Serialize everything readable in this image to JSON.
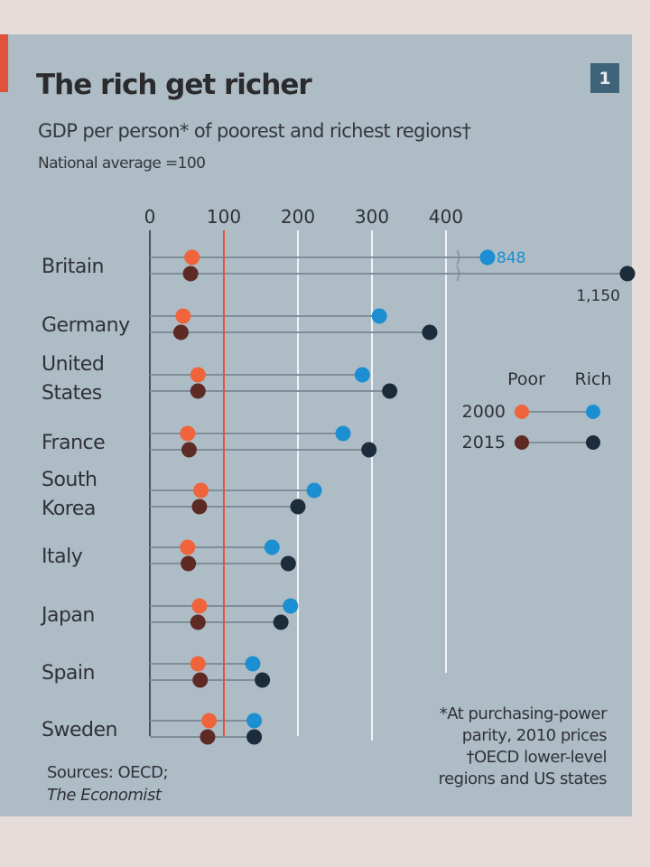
{
  "chart_badge": "1",
  "footnote": {
    "lines": [
      "*At purchasing-power",
      "parity, 2010 prices",
      "†OECD lower-level",
      "regions and US states"
    ]
  },
  "sources": {
    "line1": "Sources: OECD;",
    "line2": "The Economist"
  },
  "colors": {
    "background": "#aebcc6",
    "poor_2000": "#f0643c",
    "poor_2015": "#5e2a24",
    "rich_2000": "#1b8fd2",
    "rich_2015": "#1c2c3a",
    "reference_line": "#e1523d",
    "connector": "#7f8e98",
    "gridline": "#f2f4f5"
  },
  "chart_data": {
    "type": "scatter",
    "subtype": "dumbbell",
    "title": "The rich get richer",
    "subtitle": "GDP per person* of poorest and richest regions†",
    "unit_note": "National average =100",
    "xlabel": "",
    "ylabel": "",
    "xlim": [
      0,
      420
    ],
    "x_ticks": [
      0,
      100,
      200,
      300,
      400
    ],
    "x_tick_labels": [
      "0",
      "100",
      "200",
      "300",
      "400"
    ],
    "reference_line": 100,
    "grid": true,
    "categories": [
      [
        "Britain"
      ],
      [
        "Germany"
      ],
      [
        "United",
        "States"
      ],
      [
        "France"
      ],
      [
        "South",
        "Korea"
      ],
      [
        "Italy"
      ],
      [
        "Japan"
      ],
      [
        "Spain"
      ],
      [
        "Sweden"
      ]
    ],
    "category_names": [
      "Britain",
      "Germany",
      "United States",
      "France",
      "South Korea",
      "Italy",
      "Japan",
      "Spain",
      "Sweden"
    ],
    "series": [
      {
        "name": "Poor 2000",
        "values": [
          57,
          45,
          65,
          51,
          69,
          51,
          67,
          65,
          80
        ]
      },
      {
        "name": "Poor 2015",
        "values": [
          55,
          42,
          65,
          53,
          67,
          52,
          65,
          68,
          78
        ]
      },
      {
        "name": "Rich 2000",
        "values": [
          848,
          310,
          287,
          261,
          222,
          165,
          190,
          139,
          141
        ]
      },
      {
        "name": "Rich 2015",
        "values": [
          1150,
          378,
          324,
          296,
          200,
          187,
          177,
          152,
          141
        ]
      }
    ],
    "annotations": [
      {
        "category": "Britain",
        "series": "Rich 2000",
        "text": "848"
      },
      {
        "category": "Britain",
        "series": "Rich 2015",
        "text": "1,150"
      }
    ],
    "axis_break": {
      "category": "Britain",
      "after": 400
    },
    "legend": {
      "placement": "right",
      "columns": [
        "Poor",
        "Rich"
      ],
      "rows": [
        "2000",
        "2015"
      ]
    }
  }
}
